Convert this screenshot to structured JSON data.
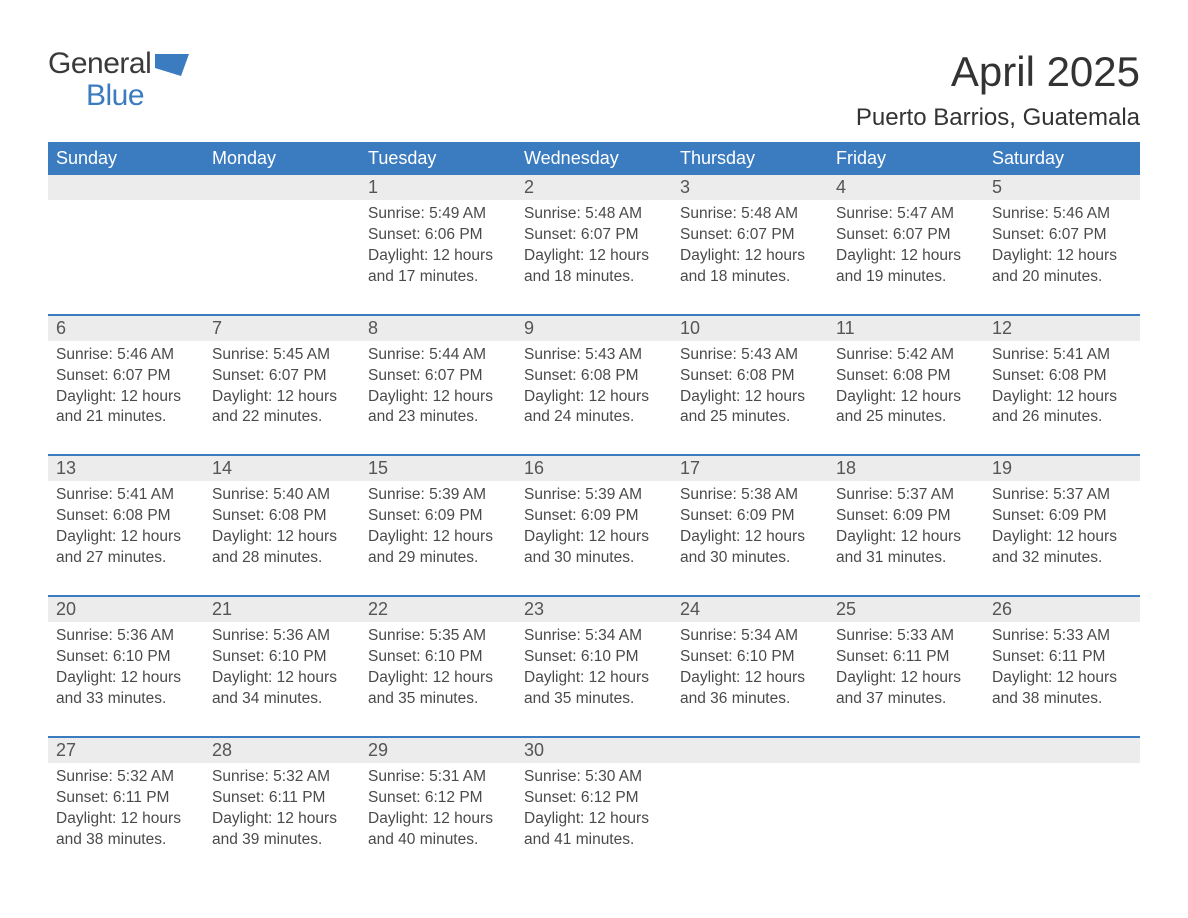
{
  "brand": {
    "line1": "General",
    "line2": "Blue",
    "primary_color": "#3b7bbf"
  },
  "header": {
    "title": "April 2025",
    "location": "Puerto Barrios, Guatemala"
  },
  "styling": {
    "header_row_bg": "#3b7bbf",
    "header_row_fg": "#ffffff",
    "daynum_row_bg": "#ececec",
    "week_separator_color": "#3b7bbf",
    "body_font_size_pt": 12,
    "header_font_size_pt": 14,
    "title_font_size_pt": 32,
    "location_font_size_pt": 18,
    "columns": 7,
    "type": "calendar-table"
  },
  "weekdays": [
    "Sunday",
    "Monday",
    "Tuesday",
    "Wednesday",
    "Thursday",
    "Friday",
    "Saturday"
  ],
  "weeks": [
    [
      null,
      null,
      {
        "n": "1",
        "sunrise": "5:49 AM",
        "sunset": "6:06 PM",
        "daylight": "12 hours and 17 minutes."
      },
      {
        "n": "2",
        "sunrise": "5:48 AM",
        "sunset": "6:07 PM",
        "daylight": "12 hours and 18 minutes."
      },
      {
        "n": "3",
        "sunrise": "5:48 AM",
        "sunset": "6:07 PM",
        "daylight": "12 hours and 18 minutes."
      },
      {
        "n": "4",
        "sunrise": "5:47 AM",
        "sunset": "6:07 PM",
        "daylight": "12 hours and 19 minutes."
      },
      {
        "n": "5",
        "sunrise": "5:46 AM",
        "sunset": "6:07 PM",
        "daylight": "12 hours and 20 minutes."
      }
    ],
    [
      {
        "n": "6",
        "sunrise": "5:46 AM",
        "sunset": "6:07 PM",
        "daylight": "12 hours and 21 minutes."
      },
      {
        "n": "7",
        "sunrise": "5:45 AM",
        "sunset": "6:07 PM",
        "daylight": "12 hours and 22 minutes."
      },
      {
        "n": "8",
        "sunrise": "5:44 AM",
        "sunset": "6:07 PM",
        "daylight": "12 hours and 23 minutes."
      },
      {
        "n": "9",
        "sunrise": "5:43 AM",
        "sunset": "6:08 PM",
        "daylight": "12 hours and 24 minutes."
      },
      {
        "n": "10",
        "sunrise": "5:43 AM",
        "sunset": "6:08 PM",
        "daylight": "12 hours and 25 minutes."
      },
      {
        "n": "11",
        "sunrise": "5:42 AM",
        "sunset": "6:08 PM",
        "daylight": "12 hours and 25 minutes."
      },
      {
        "n": "12",
        "sunrise": "5:41 AM",
        "sunset": "6:08 PM",
        "daylight": "12 hours and 26 minutes."
      }
    ],
    [
      {
        "n": "13",
        "sunrise": "5:41 AM",
        "sunset": "6:08 PM",
        "daylight": "12 hours and 27 minutes."
      },
      {
        "n": "14",
        "sunrise": "5:40 AM",
        "sunset": "6:08 PM",
        "daylight": "12 hours and 28 minutes."
      },
      {
        "n": "15",
        "sunrise": "5:39 AM",
        "sunset": "6:09 PM",
        "daylight": "12 hours and 29 minutes."
      },
      {
        "n": "16",
        "sunrise": "5:39 AM",
        "sunset": "6:09 PM",
        "daylight": "12 hours and 30 minutes."
      },
      {
        "n": "17",
        "sunrise": "5:38 AM",
        "sunset": "6:09 PM",
        "daylight": "12 hours and 30 minutes."
      },
      {
        "n": "18",
        "sunrise": "5:37 AM",
        "sunset": "6:09 PM",
        "daylight": "12 hours and 31 minutes."
      },
      {
        "n": "19",
        "sunrise": "5:37 AM",
        "sunset": "6:09 PM",
        "daylight": "12 hours and 32 minutes."
      }
    ],
    [
      {
        "n": "20",
        "sunrise": "5:36 AM",
        "sunset": "6:10 PM",
        "daylight": "12 hours and 33 minutes."
      },
      {
        "n": "21",
        "sunrise": "5:36 AM",
        "sunset": "6:10 PM",
        "daylight": "12 hours and 34 minutes."
      },
      {
        "n": "22",
        "sunrise": "5:35 AM",
        "sunset": "6:10 PM",
        "daylight": "12 hours and 35 minutes."
      },
      {
        "n": "23",
        "sunrise": "5:34 AM",
        "sunset": "6:10 PM",
        "daylight": "12 hours and 35 minutes."
      },
      {
        "n": "24",
        "sunrise": "5:34 AM",
        "sunset": "6:10 PM",
        "daylight": "12 hours and 36 minutes."
      },
      {
        "n": "25",
        "sunrise": "5:33 AM",
        "sunset": "6:11 PM",
        "daylight": "12 hours and 37 minutes."
      },
      {
        "n": "26",
        "sunrise": "5:33 AM",
        "sunset": "6:11 PM",
        "daylight": "12 hours and 38 minutes."
      }
    ],
    [
      {
        "n": "27",
        "sunrise": "5:32 AM",
        "sunset": "6:11 PM",
        "daylight": "12 hours and 38 minutes."
      },
      {
        "n": "28",
        "sunrise": "5:32 AM",
        "sunset": "6:11 PM",
        "daylight": "12 hours and 39 minutes."
      },
      {
        "n": "29",
        "sunrise": "5:31 AM",
        "sunset": "6:12 PM",
        "daylight": "12 hours and 40 minutes."
      },
      {
        "n": "30",
        "sunrise": "5:30 AM",
        "sunset": "6:12 PM",
        "daylight": "12 hours and 41 minutes."
      },
      null,
      null,
      null
    ]
  ],
  "labels": {
    "sunrise": "Sunrise: ",
    "sunset": "Sunset: ",
    "daylight": "Daylight: "
  }
}
